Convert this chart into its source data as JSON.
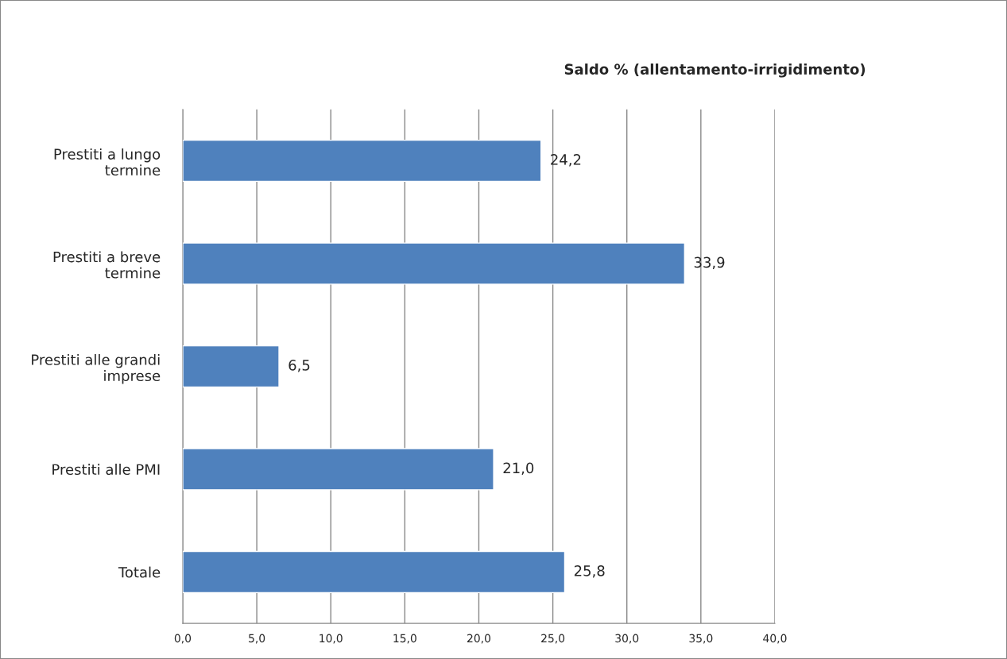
{
  "chart_data": {
    "type": "bar",
    "orientation": "horizontal",
    "title": "Saldo % (allentamento-irrigidimento)",
    "categories": [
      "Prestiti a lungo termine",
      "Prestiti a breve termine",
      "Prestiti alle grandi imprese",
      "Prestiti alle PMI",
      "Totale"
    ],
    "values": [
      24.2,
      33.9,
      6.5,
      21.0,
      25.8
    ],
    "value_labels": [
      "24,2",
      "33,9",
      "6,5",
      "21,0",
      "25,8"
    ],
    "color": "#4f81bd",
    "xlim": [
      0,
      40
    ],
    "xticks": [
      {
        "value": 0,
        "label": "0,0"
      },
      {
        "value": 5,
        "label": "5,0"
      },
      {
        "value": 10,
        "label": "10,0"
      },
      {
        "value": 15,
        "label": "15,0"
      },
      {
        "value": 20,
        "label": "20,0"
      },
      {
        "value": 25,
        "label": "25,0"
      },
      {
        "value": 30,
        "label": "30,0"
      },
      {
        "value": 35,
        "label": "35,0"
      },
      {
        "value": 40,
        "label": "40,0"
      }
    ],
    "grid": "x"
  }
}
